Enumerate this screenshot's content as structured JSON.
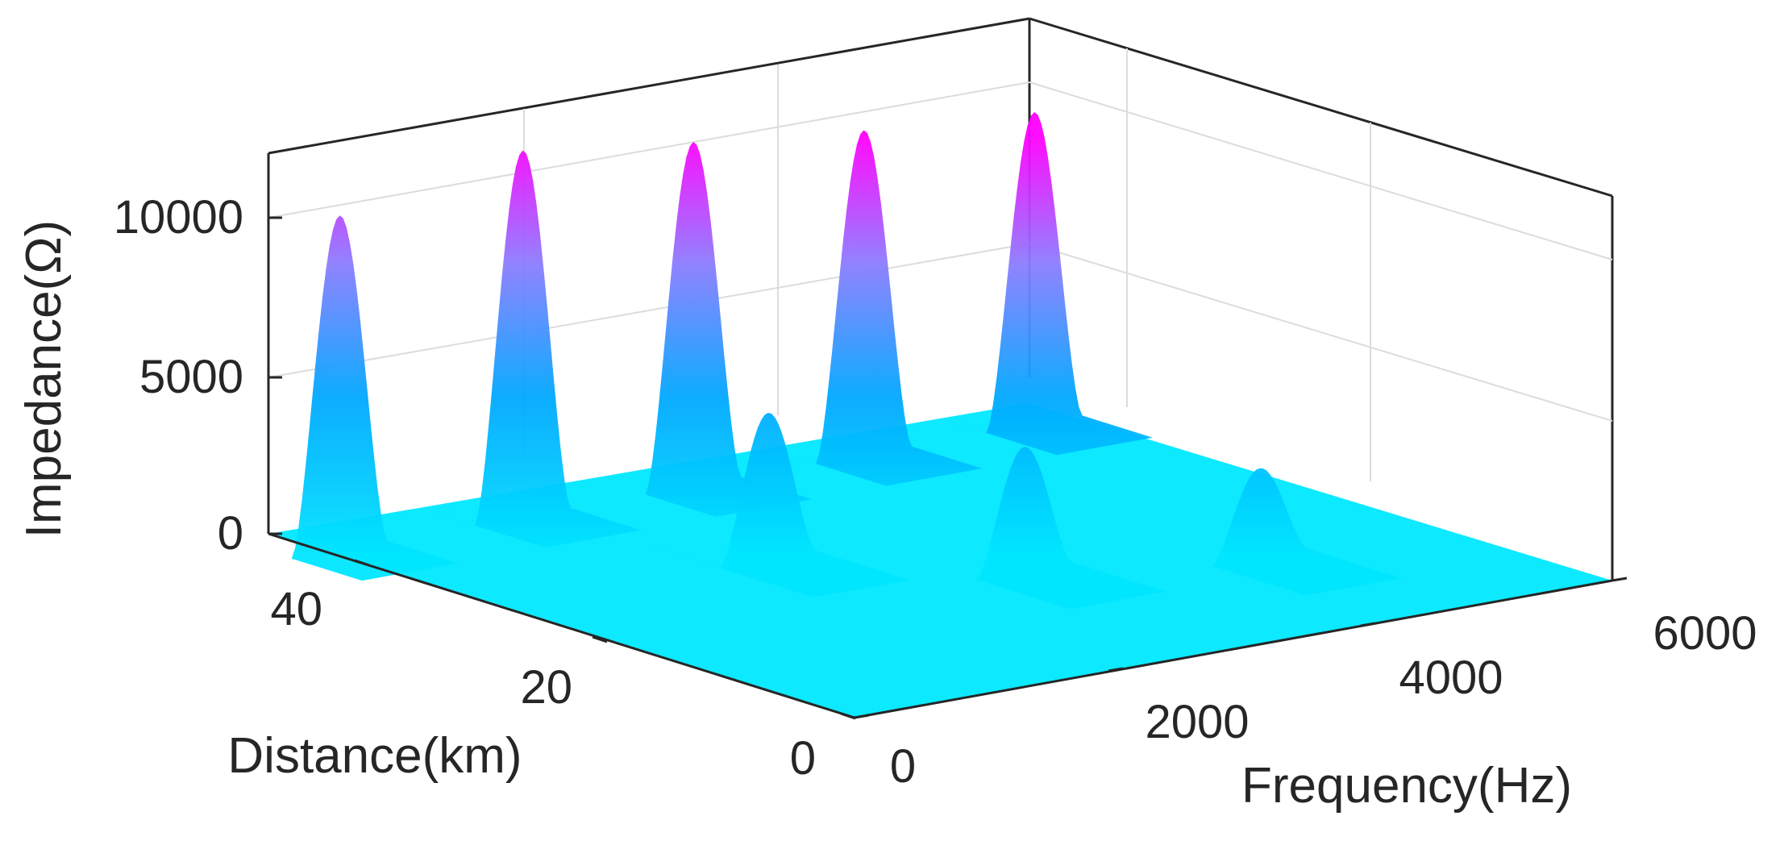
{
  "chart_data": {
    "type": "surface",
    "title": "",
    "xlabel": "Frequency(Hz)",
    "ylabel": "Distance(km)",
    "zlabel": "Impedance(Ω)",
    "xlim": [
      0,
      6000
    ],
    "ylim": [
      0,
      50
    ],
    "zlim": [
      0,
      12000
    ],
    "xticks": [
      0,
      2000,
      4000,
      6000
    ],
    "yticks": [
      0,
      20,
      40
    ],
    "zticks": [
      0,
      5000,
      10000
    ],
    "grid": true,
    "colormap": [
      "#00e5ff",
      "#00a6ff",
      "#8a7dff",
      "#ff00ff"
    ],
    "impedance_peaks": [
      {
        "distance_km": 45,
        "frequency_hz": 100,
        "impedance": 10500
      },
      {
        "distance_km": 45,
        "frequency_hz": 1550,
        "impedance": 11500
      },
      {
        "distance_km": 45,
        "frequency_hz": 2900,
        "impedance": 10800
      },
      {
        "distance_km": 45,
        "frequency_hz": 4250,
        "impedance": 10200
      },
      {
        "distance_km": 45,
        "frequency_hz": 5600,
        "impedance": 9800
      },
      {
        "distance_km": 30,
        "frequency_hz": 2100,
        "impedance": 4600
      },
      {
        "distance_km": 20,
        "frequency_hz": 3200,
        "impedance": 3900
      },
      {
        "distance_km": 15,
        "frequency_hz": 4600,
        "impedance": 2800
      }
    ]
  }
}
